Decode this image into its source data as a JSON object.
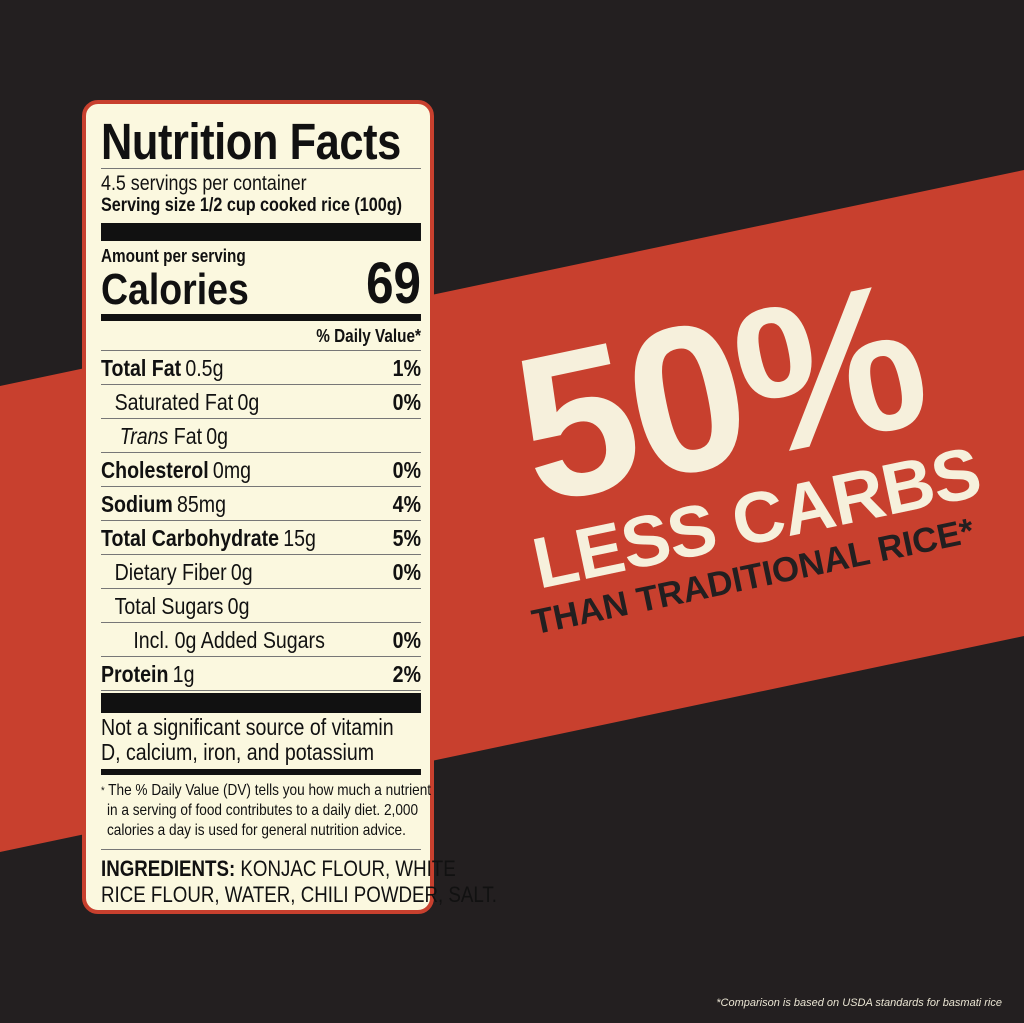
{
  "colors": {
    "background": "#231f20",
    "band": "#c8402e",
    "cream": "#f6f0dc",
    "label_bg": "#fbf8df"
  },
  "label": {
    "title": "Nutrition Facts",
    "servings": "4.5 servings per container",
    "serving_size": "Serving size 1/2 cup cooked rice (100g)",
    "amount_per_serving": "Amount per serving",
    "calories_label": "Calories",
    "calories_value": "69",
    "dv_header": "% Daily Value*",
    "rows": [
      {
        "name": "Total Fat",
        "amount": "0.5g",
        "dv": "1%",
        "bold": true,
        "indent": 0
      },
      {
        "name": "Saturated Fat",
        "amount": "0g",
        "dv": "0%",
        "bold": false,
        "indent": 1
      },
      {
        "italic": "Trans",
        "name": " Fat",
        "amount": "0g",
        "dv": "",
        "bold": false,
        "indent": 1
      },
      {
        "name": "Cholesterol",
        "amount": "0mg",
        "dv": "0%",
        "bold": true,
        "indent": 0
      },
      {
        "name": "Sodium",
        "amount": "85mg",
        "dv": "4%",
        "bold": true,
        "indent": 0
      },
      {
        "name": "Total Carbohydrate",
        "amount": "15g",
        "dv": "5%",
        "bold": true,
        "indent": 0
      },
      {
        "name": "Dietary Fiber",
        "amount": "0g",
        "dv": "0%",
        "bold": false,
        "indent": 1
      },
      {
        "name": "Total Sugars",
        "amount": "0g",
        "dv": "",
        "bold": false,
        "indent": 1
      },
      {
        "name": "Incl. 0g Added Sugars",
        "amount": "",
        "dv": "0%",
        "bold": false,
        "indent": 2
      },
      {
        "name": "Protein",
        "amount": "1g",
        "dv": "2%",
        "bold": true,
        "indent": 0
      }
    ],
    "vitamin_note_1": "Not a significant source of vitamin",
    "vitamin_note_2": "D, calcium, iron, and potassium",
    "footnote_star": "*",
    "footnote_1": "The % Daily Value (DV) tells you how much a nutrient",
    "footnote_2": "in a serving of food contributes to a daily diet. 2,000",
    "footnote_3": "calories a day is used for general nutrition advice.",
    "ingredients_label": "INGREDIENTS:",
    "ingredients_1": "KONJAC FLOUR, WHITE",
    "ingredients_2": "RICE FLOUR, WATER, CHILI POWDER, SALT."
  },
  "claim": {
    "big": "50%",
    "line2": "LESS CARBS",
    "line3": "THAN TRADITIONAL RICE*"
  },
  "disclaimer": "*Comparison is based on USDA standards for basmati rice"
}
